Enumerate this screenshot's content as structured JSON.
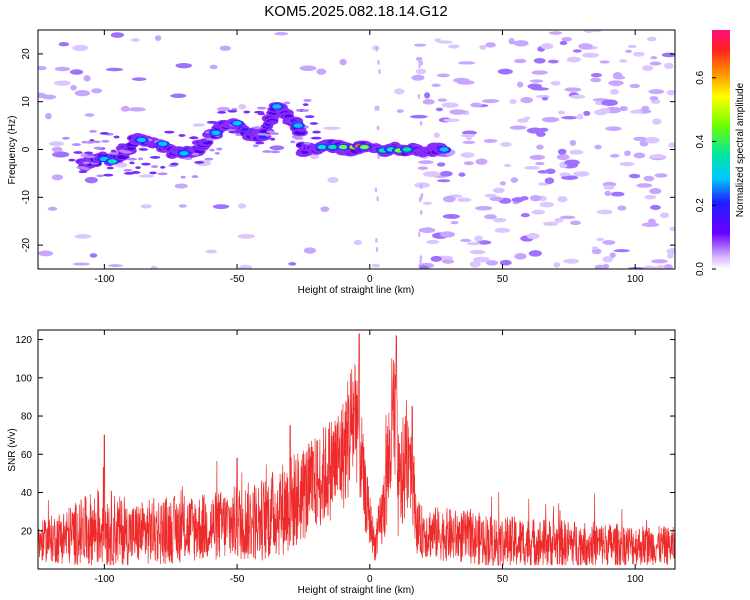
{
  "chart_data": [
    {
      "type": "heatmap",
      "title": "KOM5.2025.082.18.14.G12",
      "xlabel": "Height of straight line (km)",
      "ylabel": "Frequency (Hz)",
      "xlim": [
        -125,
        115
      ],
      "ylim": [
        -25,
        25
      ],
      "xticks": [
        -100,
        -50,
        0,
        50,
        100
      ],
      "yticks": [
        -20,
        -10,
        0,
        10,
        20
      ],
      "colorbar": {
        "label": "Normalized spectral amplitude",
        "range": [
          0.0,
          0.75
        ],
        "ticks": [
          0.0,
          0.2,
          0.4,
          0.6
        ]
      },
      "ridge": {
        "description_points": [
          {
            "x": -108,
            "y": -3
          },
          {
            "x": -100,
            "y": -2
          },
          {
            "x": -95,
            "y": -2
          },
          {
            "x": -88,
            "y": 2
          },
          {
            "x": -80,
            "y": 1
          },
          {
            "x": -72,
            "y": -1
          },
          {
            "x": -65,
            "y": 0
          },
          {
            "x": -58,
            "y": 4
          },
          {
            "x": -52,
            "y": 6
          },
          {
            "x": -45,
            "y": 3
          },
          {
            "x": -40,
            "y": 3
          },
          {
            "x": -35,
            "y": 9
          },
          {
            "x": -27,
            "y": 5
          },
          {
            "x": -25,
            "y": 0
          },
          {
            "x": -15,
            "y": 1
          },
          {
            "x": -8,
            "y": 0
          },
          {
            "x": -4,
            "y": 0.5
          },
          {
            "x": 5,
            "y": 0
          },
          {
            "x": 12,
            "y": 0
          },
          {
            "x": 28,
            "y": 0
          }
        ]
      }
    },
    {
      "type": "line",
      "xlabel": "Height of straight line (km)",
      "ylabel": "SNR (v/v)",
      "xlim": [
        -125,
        115
      ],
      "ylim": [
        0,
        125
      ],
      "xticks": [
        -100,
        -50,
        0,
        50,
        100
      ],
      "yticks": [
        20,
        40,
        60,
        80,
        100,
        120
      ],
      "color": "#ee2a2a",
      "envelope": [
        {
          "x": -125,
          "base": 14,
          "spread": 10
        },
        {
          "x": -100,
          "base": 22,
          "spread": 22
        },
        {
          "x": -90,
          "base": 18,
          "spread": 16
        },
        {
          "x": -80,
          "base": 20,
          "spread": 18
        },
        {
          "x": -60,
          "base": 22,
          "spread": 18
        },
        {
          "x": -40,
          "base": 26,
          "spread": 22
        },
        {
          "x": -30,
          "base": 34,
          "spread": 26
        },
        {
          "x": -20,
          "base": 45,
          "spread": 25
        },
        {
          "x": -10,
          "base": 60,
          "spread": 30
        },
        {
          "x": -5,
          "base": 85,
          "spread": 40
        },
        {
          "x": -2,
          "base": 40,
          "spread": 20
        },
        {
          "x": 2,
          "base": 12,
          "spread": 8
        },
        {
          "x": 5,
          "base": 30,
          "spread": 20
        },
        {
          "x": 9,
          "base": 80,
          "spread": 45
        },
        {
          "x": 11,
          "base": 40,
          "spread": 30
        },
        {
          "x": 15,
          "base": 65,
          "spread": 30
        },
        {
          "x": 18,
          "base": 20,
          "spread": 14
        },
        {
          "x": 50,
          "base": 14,
          "spread": 14
        },
        {
          "x": 115,
          "base": 12,
          "spread": 10
        }
      ],
      "peaks": [
        {
          "x": -100,
          "y": 70
        },
        {
          "x": -4,
          "y": 123
        },
        {
          "x": 10,
          "y": 122
        },
        {
          "x": 16,
          "y": 85
        },
        {
          "x": -50,
          "y": 58
        },
        {
          "x": -30,
          "y": 75
        }
      ]
    }
  ]
}
